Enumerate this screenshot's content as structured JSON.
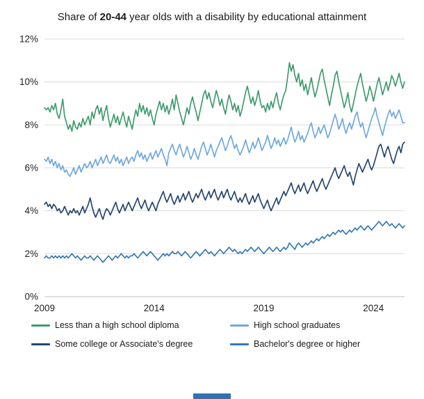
{
  "title": {
    "prefix": "Share of ",
    "bold": "20-44",
    "suffix": " year olds with a disability by educational attainment"
  },
  "chart_data": {
    "type": "line",
    "title": "Share of 20-44 year olds with a disability by educational attainment",
    "xlabel": "",
    "ylabel": "",
    "ylim": [
      0,
      12
    ],
    "y_ticks": [
      "0%",
      "2%",
      "4%",
      "6%",
      "8%",
      "10%",
      "12%"
    ],
    "x_ticks": [
      2009,
      2014,
      2019,
      2024
    ],
    "x_start_year": 2009,
    "points_per_year": 12,
    "grid": true,
    "legend_position": "bottom",
    "gridline_color": "#d9d9d9",
    "axis_label_color": "#1f1f1f",
    "series": [
      {
        "name": "Less than a high school diploma",
        "color": "#3f9b6e",
        "values": [
          8.8,
          8.7,
          8.8,
          8.6,
          8.9,
          8.7,
          9.0,
          8.5,
          8.3,
          8.7,
          9.2,
          8.4,
          8.1,
          7.8,
          8.0,
          7.7,
          8.2,
          7.9,
          7.8,
          8.1,
          7.9,
          8.3,
          8.0,
          8.2,
          8.4,
          8.0,
          8.6,
          8.3,
          8.7,
          8.9,
          8.5,
          8.8,
          8.2,
          8.6,
          8.9,
          8.3,
          7.9,
          8.2,
          8.5,
          8.1,
          8.4,
          8.0,
          8.3,
          8.6,
          8.2,
          7.9,
          8.4,
          8.1,
          7.8,
          8.3,
          8.7,
          8.4,
          9.0,
          8.6,
          8.9,
          8.5,
          8.8,
          8.4,
          8.7,
          8.3,
          8.0,
          8.5,
          8.8,
          9.1,
          8.7,
          9.0,
          8.6,
          8.9,
          8.5,
          8.8,
          9.2,
          8.7,
          9.4,
          9.0,
          8.6,
          8.3,
          8.0,
          8.4,
          8.8,
          8.5,
          9.0,
          9.3,
          8.9,
          8.6,
          8.2,
          8.6,
          9.0,
          9.4,
          9.6,
          9.2,
          9.5,
          9.1,
          8.8,
          9.2,
          9.6,
          9.3,
          8.9,
          9.2,
          8.8,
          8.5,
          9.0,
          9.4,
          9.1,
          8.7,
          9.0,
          8.6,
          8.9,
          8.4,
          8.7,
          9.1,
          9.5,
          9.8,
          9.4,
          9.0,
          9.3,
          8.9,
          9.2,
          9.6,
          9.1,
          8.8,
          8.9,
          8.6,
          9.0,
          8.7,
          9.1,
          8.8,
          9.2,
          9.5,
          9.0,
          8.7,
          9.1,
          9.4,
          9.6,
          10.2,
          10.9,
          10.5,
          10.8,
          10.3,
          10.0,
          10.4,
          9.8,
          10.1,
          9.6,
          9.9,
          9.4,
          9.8,
          10.2,
          9.7,
          9.3,
          9.6,
          10.0,
          10.4,
          10.6,
          10.1,
          9.7,
          9.3,
          8.9,
          9.4,
          9.8,
          10.3,
          10.5,
          10.0,
          9.6,
          9.2,
          8.8,
          9.1,
          9.5,
          8.9,
          8.6,
          9.0,
          9.4,
          9.8,
          10.1,
          10.4,
          9.9,
          9.5,
          9.1,
          9.4,
          9.8,
          9.5,
          9.1,
          9.5,
          9.9,
          10.2,
          9.8,
          9.4,
          9.7,
          10.0,
          9.6,
          9.9,
          10.3,
          10.1,
          9.8,
          10.1,
          10.4,
          10.0,
          9.7,
          10.0
        ]
      },
      {
        "name": "High school graduates",
        "color": "#6fa8dc",
        "values": [
          6.4,
          6.3,
          6.5,
          6.2,
          6.4,
          6.1,
          6.3,
          6.0,
          6.2,
          5.9,
          6.1,
          5.8,
          5.9,
          5.7,
          5.6,
          5.8,
          6.0,
          5.7,
          5.9,
          6.1,
          5.8,
          6.0,
          6.2,
          6.0,
          6.1,
          6.3,
          6.0,
          6.2,
          6.4,
          6.1,
          6.3,
          6.5,
          6.2,
          6.4,
          6.6,
          6.3,
          6.2,
          6.4,
          6.6,
          6.3,
          6.5,
          6.2,
          6.4,
          6.1,
          6.3,
          6.5,
          6.2,
          6.4,
          6.5,
          6.3,
          6.6,
          6.8,
          6.5,
          6.7,
          6.4,
          6.6,
          6.3,
          6.5,
          6.7,
          6.4,
          6.6,
          6.8,
          6.5,
          6.7,
          6.9,
          6.6,
          6.4,
          6.1,
          6.7,
          6.9,
          7.1,
          6.8,
          6.6,
          6.9,
          7.1,
          6.8,
          6.5,
          6.7,
          7.0,
          6.7,
          6.4,
          6.6,
          6.9,
          6.6,
          6.4,
          6.7,
          7.0,
          7.2,
          6.9,
          6.6,
          6.8,
          7.1,
          6.8,
          6.5,
          6.8,
          7.0,
          7.2,
          7.4,
          7.1,
          6.8,
          7.0,
          7.3,
          7.5,
          7.2,
          6.9,
          7.1,
          6.8,
          6.6,
          6.8,
          7.0,
          7.3,
          7.0,
          6.7,
          6.9,
          7.2,
          6.9,
          7.1,
          7.4,
          7.1,
          6.8,
          7.0,
          7.2,
          7.5,
          7.2,
          6.9,
          7.1,
          7.4,
          7.1,
          7.3,
          7.0,
          7.2,
          7.4,
          7.1,
          7.3,
          7.6,
          7.9,
          7.5,
          7.2,
          7.4,
          7.7,
          7.3,
          7.5,
          7.2,
          7.4,
          7.6,
          7.9,
          8.1,
          7.7,
          7.4,
          7.6,
          7.9,
          7.6,
          7.8,
          8.0,
          7.7,
          7.4,
          7.6,
          7.9,
          8.2,
          8.5,
          8.2,
          7.8,
          8.0,
          8.3,
          7.9,
          7.6,
          7.9,
          8.1,
          7.8,
          8.1,
          8.4,
          8.6,
          8.2,
          7.9,
          8.1,
          7.7,
          7.4,
          7.7,
          8.0,
          8.3,
          8.5,
          8.8,
          8.4,
          8.1,
          7.8,
          7.5,
          7.9,
          8.2,
          8.5,
          8.7,
          8.4,
          8.6,
          8.3,
          8.5,
          8.7,
          8.4,
          8.1,
          8.1
        ]
      },
      {
        "name": "Some college or Associate's degree",
        "color": "#26456d",
        "values": [
          4.3,
          4.4,
          4.2,
          4.3,
          4.1,
          4.3,
          4.2,
          4.0,
          4.1,
          3.9,
          4.0,
          4.2,
          4.0,
          3.8,
          4.0,
          3.9,
          4.1,
          3.9,
          4.0,
          3.8,
          4.0,
          4.2,
          3.9,
          4.1,
          4.3,
          4.6,
          4.2,
          3.9,
          3.7,
          3.9,
          4.1,
          3.8,
          3.6,
          3.9,
          4.1,
          4.0,
          3.8,
          4.0,
          4.2,
          4.4,
          4.1,
          3.9,
          4.1,
          4.3,
          4.0,
          4.2,
          4.4,
          4.2,
          4.0,
          4.2,
          4.4,
          4.6,
          4.3,
          4.1,
          4.3,
          4.5,
          4.2,
          4.0,
          4.2,
          4.4,
          4.2,
          4.0,
          4.3,
          4.5,
          4.7,
          4.9,
          4.6,
          4.4,
          4.6,
          4.8,
          4.5,
          4.3,
          4.5,
          4.7,
          4.4,
          4.6,
          4.8,
          4.5,
          4.7,
          4.9,
          4.6,
          4.4,
          4.6,
          4.8,
          4.6,
          4.8,
          5.0,
          4.7,
          4.5,
          4.7,
          4.9,
          4.6,
          4.8,
          5.0,
          4.7,
          4.5,
          4.7,
          4.9,
          4.6,
          4.8,
          5.0,
          4.7,
          4.5,
          4.7,
          4.9,
          4.6,
          4.4,
          4.6,
          4.4,
          4.6,
          4.8,
          4.5,
          4.3,
          4.5,
          4.7,
          4.4,
          4.6,
          4.8,
          4.5,
          4.3,
          4.1,
          4.3,
          4.5,
          4.2,
          4.0,
          4.2,
          4.4,
          4.6,
          4.3,
          4.5,
          4.7,
          4.9,
          4.7,
          4.9,
          5.1,
          5.3,
          5.0,
          4.8,
          5.0,
          5.2,
          4.9,
          5.1,
          5.3,
          5.0,
          4.8,
          5.0,
          5.2,
          5.4,
          5.1,
          4.9,
          5.1,
          5.3,
          5.5,
          5.2,
          5.0,
          5.2,
          5.4,
          5.6,
          5.8,
          6.0,
          5.7,
          5.5,
          5.7,
          5.9,
          6.1,
          5.8,
          5.6,
          5.8,
          5.5,
          5.2,
          5.6,
          5.9,
          6.2,
          6.0,
          5.8,
          6.0,
          6.2,
          6.4,
          6.1,
          5.9,
          6.1,
          6.4,
          6.7,
          7.0,
          7.1,
          6.8,
          6.5,
          6.8,
          7.0,
          6.7,
          6.4,
          6.2,
          6.5,
          6.8,
          7.0,
          6.7,
          7.1,
          7.2
        ]
      },
      {
        "name": "Bachelor's degree or higher",
        "color": "#3878b4",
        "values": [
          1.8,
          1.9,
          1.8,
          1.8,
          1.9,
          1.8,
          1.9,
          1.8,
          1.9,
          1.8,
          1.9,
          1.8,
          1.9,
          1.8,
          1.9,
          2.0,
          1.9,
          1.8,
          1.9,
          1.8,
          1.7,
          1.8,
          1.9,
          1.8,
          1.8,
          1.9,
          1.8,
          1.7,
          1.8,
          1.9,
          1.8,
          1.7,
          1.6,
          1.7,
          1.8,
          1.9,
          1.8,
          1.7,
          1.8,
          1.9,
          1.8,
          1.9,
          2.0,
          1.9,
          1.8,
          1.9,
          1.8,
          1.9,
          1.9,
          2.0,
          1.9,
          1.8,
          1.9,
          2.0,
          2.1,
          2.0,
          1.9,
          2.0,
          2.1,
          2.0,
          1.9,
          1.8,
          1.7,
          1.8,
          1.9,
          2.0,
          1.9,
          2.0,
          1.9,
          2.0,
          2.1,
          2.0,
          2.0,
          2.1,
          2.0,
          1.9,
          2.0,
          2.1,
          2.0,
          1.9,
          1.8,
          1.9,
          2.0,
          2.1,
          2.0,
          1.9,
          2.0,
          2.1,
          2.2,
          2.1,
          2.0,
          2.1,
          2.0,
          1.9,
          2.0,
          2.1,
          2.2,
          2.1,
          2.0,
          2.1,
          2.2,
          2.3,
          2.2,
          2.1,
          2.2,
          2.1,
          2.0,
          2.1,
          2.0,
          2.1,
          2.2,
          2.1,
          2.2,
          2.3,
          2.2,
          2.1,
          2.2,
          2.3,
          2.2,
          2.1,
          2.0,
          2.1,
          2.2,
          2.3,
          2.2,
          2.1,
          2.2,
          2.3,
          2.2,
          2.1,
          2.2,
          2.3,
          2.2,
          2.3,
          2.5,
          2.4,
          2.3,
          2.2,
          2.4,
          2.5,
          2.4,
          2.3,
          2.4,
          2.5,
          2.4,
          2.5,
          2.6,
          2.5,
          2.6,
          2.7,
          2.6,
          2.7,
          2.8,
          2.7,
          2.8,
          2.9,
          2.8,
          2.9,
          3.0,
          2.9,
          3.0,
          3.1,
          3.0,
          3.1,
          3.0,
          2.9,
          3.0,
          3.1,
          3.0,
          3.1,
          3.2,
          3.1,
          3.2,
          3.3,
          3.2,
          3.1,
          3.2,
          3.3,
          3.2,
          3.1,
          3.2,
          3.3,
          3.4,
          3.5,
          3.4,
          3.3,
          3.4,
          3.5,
          3.4,
          3.3,
          3.4,
          3.3,
          3.2,
          3.3,
          3.4,
          3.3,
          3.2,
          3.3
        ]
      }
    ]
  }
}
